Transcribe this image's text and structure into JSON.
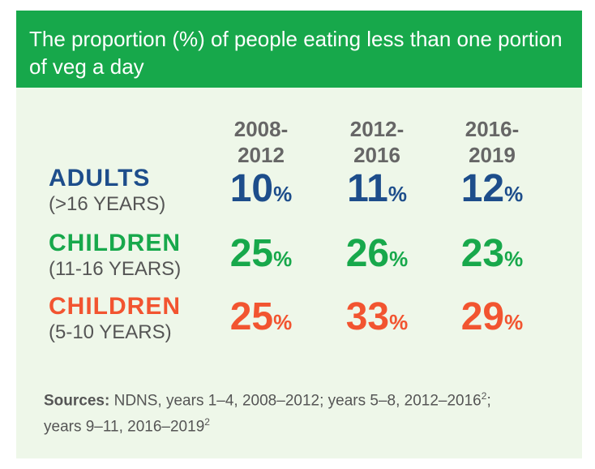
{
  "header": {
    "title": "The proportion (%) of people eating less than one portion of veg a day"
  },
  "columns": [
    {
      "line1": "2008-",
      "line2": "2012"
    },
    {
      "line1": "2012-",
      "line2": "2016"
    },
    {
      "line1": "2016-",
      "line2": "2019"
    }
  ],
  "rows": [
    {
      "label": "ADULTS",
      "sublabel": "(>16 YEARS)",
      "values": [
        "10",
        "11",
        "12"
      ]
    },
    {
      "label": "CHILDREN",
      "sublabel": "(11-16 YEARS)",
      "values": [
        "25",
        "26",
        "23"
      ]
    },
    {
      "label": "CHILDREN",
      "sublabel": "(5-10 YEARS)",
      "values": [
        "25",
        "33",
        "29"
      ]
    }
  ],
  "percent_sign": "%",
  "row_colors": [
    "#1d4d8b",
    "#17a84b",
    "#f25430"
  ],
  "sources": {
    "label": "Sources:",
    "text1": " NDNS, years 1–4, 2008–2012; years 5–8, 2012–2016",
    "sup1": "2",
    "text2": ";",
    "text3": "years 9–11, 2016–2019",
    "sup2": "2"
  }
}
